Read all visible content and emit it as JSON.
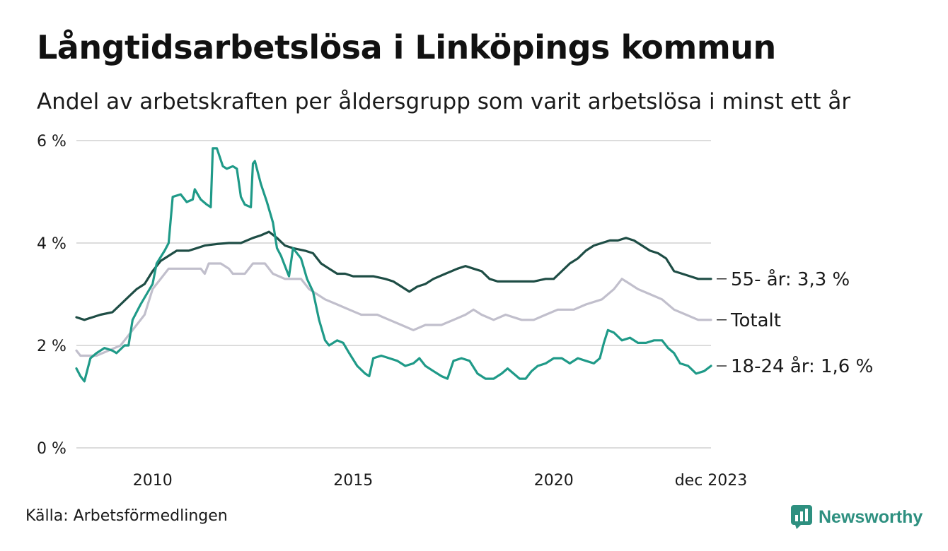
{
  "header": {
    "title": "Långtidsarbetslösa i Linköpings kommun",
    "subtitle": "Andel av arbetskraften per åldersgrupp som varit arbetslösa i minst ett år"
  },
  "footer": {
    "source": "Källa: Arbetsförmedlingen",
    "brand": "Newsworthy"
  },
  "colors": {
    "series_55": "#1e4d45",
    "series_total": "#c1bfcc",
    "series_18_24": "#1f9a88",
    "grid": "#dcdcdc",
    "brand": "#2e9080"
  },
  "icons": {
    "brand": "newsworthy-logo-icon"
  },
  "chart_data": {
    "type": "line",
    "title": "Långtidsarbetslösa i Linköpings kommun",
    "subtitle": "Andel av arbetskraften per åldersgrupp som varit arbetslösa i minst ett år",
    "xlabel": "",
    "ylabel": "",
    "xlim": [
      2008.1,
      2023.92
    ],
    "ylim": [
      0,
      6
    ],
    "grid": true,
    "y_ticks": [
      {
        "value": 0,
        "label": "0 %"
      },
      {
        "value": 2,
        "label": "2 %"
      },
      {
        "value": 4,
        "label": "4 %"
      },
      {
        "value": 6,
        "label": "6 %"
      }
    ],
    "x_ticks": [
      {
        "value": 2010,
        "label": "2010"
      },
      {
        "value": 2015,
        "label": "2015"
      },
      {
        "value": 2020,
        "label": "2020"
      },
      {
        "value": 2023.92,
        "label": "dec 2023"
      }
    ],
    "series": [
      {
        "name": "Totalt",
        "end_label": "Totalt",
        "color": "#c1bfcc",
        "points": [
          [
            2008.1,
            1.9
          ],
          [
            2008.2,
            1.8
          ],
          [
            2008.6,
            1.8
          ],
          [
            2008.9,
            1.9
          ],
          [
            2009.2,
            2.0
          ],
          [
            2009.5,
            2.3
          ],
          [
            2009.8,
            2.6
          ],
          [
            2010.0,
            3.1
          ],
          [
            2010.2,
            3.3
          ],
          [
            2010.4,
            3.5
          ],
          [
            2011.2,
            3.5
          ],
          [
            2011.3,
            3.4
          ],
          [
            2011.4,
            3.6
          ],
          [
            2011.7,
            3.6
          ],
          [
            2011.9,
            3.5
          ],
          [
            2012.0,
            3.4
          ],
          [
            2012.3,
            3.4
          ],
          [
            2012.5,
            3.6
          ],
          [
            2012.8,
            3.6
          ],
          [
            2013.0,
            3.4
          ],
          [
            2013.3,
            3.3
          ],
          [
            2013.7,
            3.3
          ],
          [
            2013.9,
            3.1
          ],
          [
            2014.1,
            3.0
          ],
          [
            2014.3,
            2.9
          ],
          [
            2014.6,
            2.8
          ],
          [
            2014.9,
            2.7
          ],
          [
            2015.2,
            2.6
          ],
          [
            2015.6,
            2.6
          ],
          [
            2015.9,
            2.5
          ],
          [
            2016.2,
            2.4
          ],
          [
            2016.5,
            2.3
          ],
          [
            2016.8,
            2.4
          ],
          [
            2017.2,
            2.4
          ],
          [
            2017.5,
            2.5
          ],
          [
            2017.8,
            2.6
          ],
          [
            2018.0,
            2.7
          ],
          [
            2018.2,
            2.6
          ],
          [
            2018.5,
            2.5
          ],
          [
            2018.8,
            2.6
          ],
          [
            2019.2,
            2.5
          ],
          [
            2019.5,
            2.5
          ],
          [
            2019.8,
            2.6
          ],
          [
            2020.1,
            2.7
          ],
          [
            2020.5,
            2.7
          ],
          [
            2020.8,
            2.8
          ],
          [
            2021.2,
            2.9
          ],
          [
            2021.5,
            3.1
          ],
          [
            2021.7,
            3.3
          ],
          [
            2021.9,
            3.2
          ],
          [
            2022.1,
            3.1
          ],
          [
            2022.4,
            3.0
          ],
          [
            2022.7,
            2.9
          ],
          [
            2023.0,
            2.7
          ],
          [
            2023.3,
            2.6
          ],
          [
            2023.6,
            2.5
          ],
          [
            2023.92,
            2.5
          ]
        ]
      },
      {
        "name": "55- år",
        "end_label": "55- år: 3,3 %",
        "color": "#1e4d45",
        "points": [
          [
            2008.1,
            2.55
          ],
          [
            2008.3,
            2.5
          ],
          [
            2008.5,
            2.55
          ],
          [
            2008.7,
            2.6
          ],
          [
            2009.0,
            2.65
          ],
          [
            2009.2,
            2.8
          ],
          [
            2009.4,
            2.95
          ],
          [
            2009.6,
            3.1
          ],
          [
            2009.8,
            3.2
          ],
          [
            2010.0,
            3.45
          ],
          [
            2010.2,
            3.65
          ],
          [
            2010.4,
            3.75
          ],
          [
            2010.6,
            3.85
          ],
          [
            2010.9,
            3.85
          ],
          [
            2011.1,
            3.9
          ],
          [
            2011.3,
            3.95
          ],
          [
            2011.6,
            3.98
          ],
          [
            2011.9,
            4.0
          ],
          [
            2012.2,
            4.0
          ],
          [
            2012.5,
            4.1
          ],
          [
            2012.7,
            4.15
          ],
          [
            2012.9,
            4.22
          ],
          [
            2013.1,
            4.1
          ],
          [
            2013.3,
            3.95
          ],
          [
            2013.5,
            3.9
          ],
          [
            2013.8,
            3.85
          ],
          [
            2014.0,
            3.8
          ],
          [
            2014.2,
            3.6
          ],
          [
            2014.4,
            3.5
          ],
          [
            2014.6,
            3.4
          ],
          [
            2014.8,
            3.4
          ],
          [
            2015.0,
            3.35
          ],
          [
            2015.2,
            3.35
          ],
          [
            2015.5,
            3.35
          ],
          [
            2015.8,
            3.3
          ],
          [
            2016.0,
            3.25
          ],
          [
            2016.2,
            3.15
          ],
          [
            2016.4,
            3.05
          ],
          [
            2016.6,
            3.15
          ],
          [
            2016.8,
            3.2
          ],
          [
            2017.0,
            3.3
          ],
          [
            2017.3,
            3.4
          ],
          [
            2017.6,
            3.5
          ],
          [
            2017.8,
            3.55
          ],
          [
            2018.0,
            3.5
          ],
          [
            2018.2,
            3.45
          ],
          [
            2018.4,
            3.3
          ],
          [
            2018.6,
            3.25
          ],
          [
            2018.8,
            3.25
          ],
          [
            2019.0,
            3.25
          ],
          [
            2019.2,
            3.25
          ],
          [
            2019.5,
            3.25
          ],
          [
            2019.8,
            3.3
          ],
          [
            2020.0,
            3.3
          ],
          [
            2020.2,
            3.45
          ],
          [
            2020.4,
            3.6
          ],
          [
            2020.6,
            3.7
          ],
          [
            2020.8,
            3.85
          ],
          [
            2021.0,
            3.95
          ],
          [
            2021.2,
            4.0
          ],
          [
            2021.4,
            4.05
          ],
          [
            2021.6,
            4.05
          ],
          [
            2021.8,
            4.1
          ],
          [
            2022.0,
            4.05
          ],
          [
            2022.2,
            3.95
          ],
          [
            2022.4,
            3.85
          ],
          [
            2022.6,
            3.8
          ],
          [
            2022.8,
            3.7
          ],
          [
            2023.0,
            3.45
          ],
          [
            2023.2,
            3.4
          ],
          [
            2023.4,
            3.35
          ],
          [
            2023.6,
            3.3
          ],
          [
            2023.92,
            3.3
          ]
        ]
      },
      {
        "name": "18-24 år",
        "end_label": "18-24 år: 1,6 %",
        "color": "#1f9a88",
        "points": [
          [
            2008.1,
            1.55
          ],
          [
            2008.2,
            1.4
          ],
          [
            2008.3,
            1.3
          ],
          [
            2008.45,
            1.75
          ],
          [
            2008.6,
            1.85
          ],
          [
            2008.8,
            1.95
          ],
          [
            2009.0,
            1.9
          ],
          [
            2009.1,
            1.85
          ],
          [
            2009.3,
            2.0
          ],
          [
            2009.4,
            2.0
          ],
          [
            2009.5,
            2.5
          ],
          [
            2009.7,
            2.8
          ],
          [
            2009.85,
            3.0
          ],
          [
            2010.0,
            3.2
          ],
          [
            2010.1,
            3.6
          ],
          [
            2010.3,
            3.85
          ],
          [
            2010.4,
            4.0
          ],
          [
            2010.5,
            4.9
          ],
          [
            2010.7,
            4.95
          ],
          [
            2010.85,
            4.8
          ],
          [
            2011.0,
            4.85
          ],
          [
            2011.05,
            5.05
          ],
          [
            2011.2,
            4.85
          ],
          [
            2011.35,
            4.75
          ],
          [
            2011.45,
            4.7
          ],
          [
            2011.5,
            5.85
          ],
          [
            2011.6,
            5.85
          ],
          [
            2011.75,
            5.5
          ],
          [
            2011.85,
            5.45
          ],
          [
            2012.0,
            5.5
          ],
          [
            2012.1,
            5.45
          ],
          [
            2012.2,
            4.9
          ],
          [
            2012.3,
            4.75
          ],
          [
            2012.45,
            4.7
          ],
          [
            2012.5,
            5.55
          ],
          [
            2012.55,
            5.6
          ],
          [
            2012.7,
            5.15
          ],
          [
            2012.85,
            4.8
          ],
          [
            2013.0,
            4.4
          ],
          [
            2013.1,
            3.9
          ],
          [
            2013.2,
            3.75
          ],
          [
            2013.3,
            3.55
          ],
          [
            2013.4,
            3.35
          ],
          [
            2013.5,
            3.9
          ],
          [
            2013.7,
            3.7
          ],
          [
            2013.85,
            3.3
          ],
          [
            2014.0,
            3.05
          ],
          [
            2014.15,
            2.5
          ],
          [
            2014.3,
            2.1
          ],
          [
            2014.4,
            2.0
          ],
          [
            2014.6,
            2.1
          ],
          [
            2014.75,
            2.05
          ],
          [
            2014.9,
            1.85
          ],
          [
            2015.1,
            1.6
          ],
          [
            2015.3,
            1.45
          ],
          [
            2015.4,
            1.4
          ],
          [
            2015.5,
            1.75
          ],
          [
            2015.7,
            1.8
          ],
          [
            2015.9,
            1.75
          ],
          [
            2016.1,
            1.7
          ],
          [
            2016.3,
            1.6
          ],
          [
            2016.5,
            1.65
          ],
          [
            2016.65,
            1.75
          ],
          [
            2016.8,
            1.6
          ],
          [
            2017.0,
            1.5
          ],
          [
            2017.2,
            1.4
          ],
          [
            2017.35,
            1.35
          ],
          [
            2017.5,
            1.7
          ],
          [
            2017.7,
            1.75
          ],
          [
            2017.9,
            1.7
          ],
          [
            2018.1,
            1.45
          ],
          [
            2018.3,
            1.35
          ],
          [
            2018.5,
            1.35
          ],
          [
            2018.7,
            1.45
          ],
          [
            2018.85,
            1.55
          ],
          [
            2019.0,
            1.45
          ],
          [
            2019.15,
            1.35
          ],
          [
            2019.3,
            1.35
          ],
          [
            2019.45,
            1.5
          ],
          [
            2019.6,
            1.6
          ],
          [
            2019.8,
            1.65
          ],
          [
            2020.0,
            1.75
          ],
          [
            2020.2,
            1.75
          ],
          [
            2020.4,
            1.65
          ],
          [
            2020.6,
            1.75
          ],
          [
            2020.8,
            1.7
          ],
          [
            2021.0,
            1.65
          ],
          [
            2021.15,
            1.75
          ],
          [
            2021.25,
            2.05
          ],
          [
            2021.35,
            2.3
          ],
          [
            2021.5,
            2.25
          ],
          [
            2021.7,
            2.1
          ],
          [
            2021.9,
            2.15
          ],
          [
            2022.1,
            2.05
          ],
          [
            2022.3,
            2.05
          ],
          [
            2022.5,
            2.1
          ],
          [
            2022.7,
            2.1
          ],
          [
            2022.85,
            1.95
          ],
          [
            2023.0,
            1.85
          ],
          [
            2023.15,
            1.65
          ],
          [
            2023.35,
            1.6
          ],
          [
            2023.55,
            1.45
          ],
          [
            2023.75,
            1.5
          ],
          [
            2023.92,
            1.6
          ]
        ]
      }
    ]
  }
}
